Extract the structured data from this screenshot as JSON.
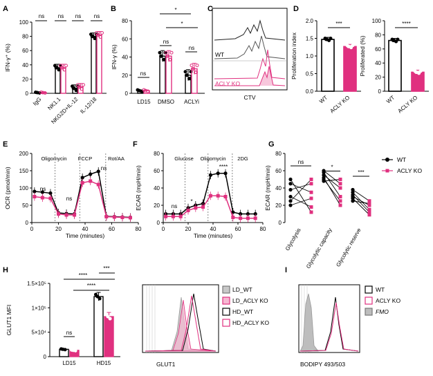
{
  "colors": {
    "wt": "#000000",
    "ko": "#e0307f",
    "fmo": "#bdbdbd",
    "ld_wt": "#c8c8c8",
    "ld_ko": "#f6b8d2"
  },
  "chart_data": [
    {
      "panel": "A",
      "type": "bar",
      "ylabel": "IFN-γ⁺ (%)",
      "ylim": [
        0,
        100
      ],
      "yticks": [
        0,
        20,
        40,
        60,
        80,
        100
      ],
      "categories": [
        "IgG",
        "NK1.1",
        "NKG2D+IL-12",
        "IL-12/18"
      ],
      "series": [
        {
          "name": "WT",
          "values": [
            1,
            36,
            7,
            80
          ]
        },
        {
          "name": "ACLY KO",
          "values": [
            1,
            36,
            9,
            82
          ]
        }
      ],
      "significance": [
        "ns",
        "ns",
        "ns",
        "ns"
      ]
    },
    {
      "panel": "B",
      "type": "bar",
      "ylabel": "IFN-γ (%)",
      "ylim": [
        0,
        80
      ],
      "yticks": [
        0,
        20,
        40,
        60,
        80
      ],
      "categories": [
        "LD15",
        "DMSO",
        "ACLYi"
      ],
      "series": [
        {
          "name": "WT",
          "values": [
            3,
            41,
            20
          ]
        },
        {
          "name": "ACLY KO",
          "values": [
            3,
            41,
            27
          ]
        }
      ],
      "significance": [
        "ns",
        "ns",
        "ns",
        "*",
        "*"
      ]
    },
    {
      "panel": "C",
      "type": "histogram",
      "xlabel": "CTV",
      "labels": [
        "WT",
        "ACLY KO"
      ]
    },
    {
      "panel": "D1",
      "type": "bar",
      "ylabel": "Proliferation index",
      "ylim": [
        0,
        2.0
      ],
      "yticks": [
        "0.0",
        "0.5",
        "1.0",
        "1.5",
        "2.0"
      ],
      "categories": [
        "WT",
        "ACLY KO"
      ],
      "values": [
        1.47,
        1.27
      ],
      "significance": "***"
    },
    {
      "panel": "D2",
      "type": "bar",
      "ylabel": "Proliferated (%)",
      "ylim": [
        0,
        100
      ],
      "yticks": [
        0,
        20,
        40,
        60,
        80,
        100
      ],
      "categories": [
        "WT",
        "ACLY KO"
      ],
      "values": [
        72,
        27
      ],
      "significance": "****"
    },
    {
      "panel": "E",
      "type": "line",
      "xlabel": "Time (minutes)",
      "ylabel": "OCR (pmol/min)",
      "xlim": [
        0,
        80
      ],
      "ylim": [
        0,
        200
      ],
      "xticks": [
        0,
        20,
        40,
        60,
        80
      ],
      "yticks": [
        0,
        50,
        100,
        150,
        200
      ],
      "annotations": [
        "Oligomycin",
        "FCCP",
        "Rot/AA"
      ],
      "significance": [
        "ns",
        "ns",
        "ns"
      ],
      "x": [
        2,
        8,
        14,
        20,
        26,
        32,
        38,
        44,
        50,
        56,
        62,
        68,
        74
      ],
      "series": [
        {
          "name": "WT",
          "values": [
            90,
            88,
            85,
            28,
            26,
            25,
            130,
            140,
            148,
            18,
            17,
            16,
            15
          ]
        },
        {
          "name": "ACLY KO",
          "values": [
            75,
            72,
            70,
            25,
            22,
            22,
            115,
            120,
            110,
            17,
            16,
            15,
            14
          ]
        }
      ]
    },
    {
      "panel": "F",
      "type": "line",
      "xlabel": "Time (minutes)",
      "ylabel": "ECAR (mpH/min)",
      "xlim": [
        0,
        80
      ],
      "ylim": [
        0,
        80
      ],
      "xticks": [
        0,
        20,
        40,
        60,
        80
      ],
      "yticks": [
        0,
        20,
        40,
        60,
        80
      ],
      "annotations": [
        "Glucose",
        "Oligomycin",
        "2DG"
      ],
      "significance": [
        "ns",
        "*",
        "****"
      ],
      "x": [
        2,
        8,
        14,
        20,
        26,
        32,
        38,
        44,
        50,
        56,
        62,
        68,
        74
      ],
      "series": [
        {
          "name": "WT",
          "values": [
            10,
            10,
            10,
            17,
            20,
            22,
            55,
            57,
            57,
            12,
            10,
            10,
            10
          ]
        },
        {
          "name": "ACLY KO",
          "values": [
            7,
            7,
            7,
            14,
            17,
            18,
            31,
            31,
            30,
            6,
            5,
            5,
            5
          ]
        }
      ]
    },
    {
      "panel": "G",
      "type": "paired-dot",
      "ylabel": "ECAR (mpH/min)",
      "ylim": [
        0,
        80
      ],
      "yticks": [
        0,
        20,
        40,
        60,
        80
      ],
      "categories": [
        "Glycolysis",
        "Glycolytic capacity",
        "Glycolytic reserve"
      ],
      "legend": [
        "WT",
        "ACLY KO"
      ],
      "significance": [
        "ns",
        "*",
        "***"
      ],
      "pairs": [
        [
          [
            20,
            28
          ],
          [
            30,
            18
          ],
          [
            38,
            45
          ],
          [
            45,
            35
          ],
          [
            50,
            12
          ],
          [
            25,
            50
          ]
        ],
        [
          [
            55,
            40
          ],
          [
            60,
            45
          ],
          [
            58,
            30
          ],
          [
            50,
            25
          ],
          [
            48,
            50
          ],
          [
            52,
            20
          ]
        ],
        [
          [
            35,
            15
          ],
          [
            32,
            12
          ],
          [
            30,
            20
          ],
          [
            28,
            9
          ],
          [
            25,
            22
          ],
          [
            38,
            25
          ]
        ]
      ]
    },
    {
      "panel": "H",
      "type": "bar",
      "ylabel": "GLUT1 MFI",
      "ylim": [
        0,
        150000
      ],
      "yticks": [
        "0",
        "5×10⁴",
        "1×10⁵",
        "1.5×10⁵"
      ],
      "categories": [
        "LD15",
        "HD15"
      ],
      "series": [
        {
          "name": "WT",
          "values": [
            15000,
            123000
          ]
        },
        {
          "name": "ACLY KO",
          "values": [
            13000,
            82000
          ]
        }
      ],
      "significance": [
        "ns",
        "***",
        "****",
        "****"
      ]
    },
    {
      "panel": "H2",
      "type": "histogram",
      "xlabel": "GLUT1",
      "legend": [
        "LD_WT",
        "LD_ACLY KO",
        "HD_WT",
        "HD_ACLY KO"
      ]
    },
    {
      "panel": "I",
      "type": "histogram",
      "xlabel": "BODIPY 493/503",
      "legend": [
        "WT",
        "ACLY KO",
        "FMO"
      ]
    }
  ]
}
